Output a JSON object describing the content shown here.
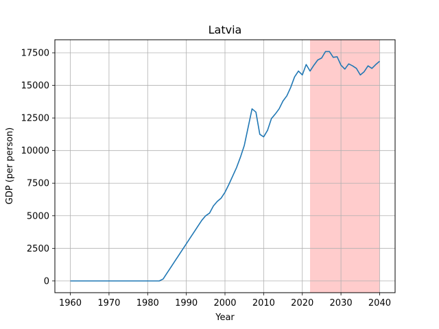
{
  "chart_data": {
    "type": "line",
    "title": "Latvia",
    "xlabel": "Year",
    "ylabel": "GDP (per person)",
    "xlim": [
      1956,
      2044
    ],
    "ylim": [
      -900,
      18500
    ],
    "x_ticks": [
      1960,
      1970,
      1980,
      1990,
      2000,
      2010,
      2020,
      2030,
      2040
    ],
    "y_ticks": [
      0,
      2500,
      5000,
      7500,
      10000,
      12500,
      15000,
      17500
    ],
    "x_tick_labels": [
      "1960",
      "1970",
      "1980",
      "1990",
      "2000",
      "2010",
      "2020",
      "2030",
      "2040"
    ],
    "y_tick_labels": [
      "0",
      "2500",
      "5000",
      "7500",
      "10000",
      "12500",
      "15000",
      "17500"
    ],
    "grid": true,
    "line_color": "#1f77b4",
    "highlight_region": {
      "x_start": 2022,
      "x_end": 2040,
      "color": "#ff9999"
    },
    "series": [
      {
        "x": [
          1960,
          1965,
          1970,
          1975,
          1980,
          1983,
          1984,
          1985,
          1986,
          1987,
          1988,
          1989,
          1990,
          1991,
          1992,
          1993,
          1994,
          1995,
          1996,
          1997,
          1998,
          1999,
          2000,
          2001,
          2002,
          2003,
          2004,
          2005,
          2006,
          2007,
          2008,
          2009,
          2010,
          2011,
          2012,
          2013,
          2014,
          2015,
          2016,
          2017,
          2018,
          2019,
          2020,
          2021,
          2022,
          2023,
          2024,
          2025,
          2026,
          2027,
          2028,
          2029,
          2030,
          2031,
          2032,
          2033,
          2034,
          2035,
          2036,
          2037,
          2038,
          2039,
          2040
        ],
        "values": [
          0,
          0,
          0,
          0,
          0,
          0,
          150,
          600,
          1050,
          1500,
          1950,
          2400,
          2850,
          3300,
          3750,
          4200,
          4650,
          5000,
          5200,
          5750,
          6100,
          6350,
          6800,
          7400,
          8050,
          8700,
          9500,
          10400,
          11800,
          13200,
          12950,
          11250,
          11050,
          11550,
          12450,
          12800,
          13200,
          13800,
          14200,
          14850,
          15650,
          16100,
          15800,
          16600,
          16100,
          16550,
          16950,
          17100,
          17600,
          17600,
          17150,
          17200,
          16550,
          16250,
          16650,
          16500,
          16300,
          15800,
          16050,
          16500,
          16300,
          16600,
          16850
        ]
      }
    ]
  }
}
